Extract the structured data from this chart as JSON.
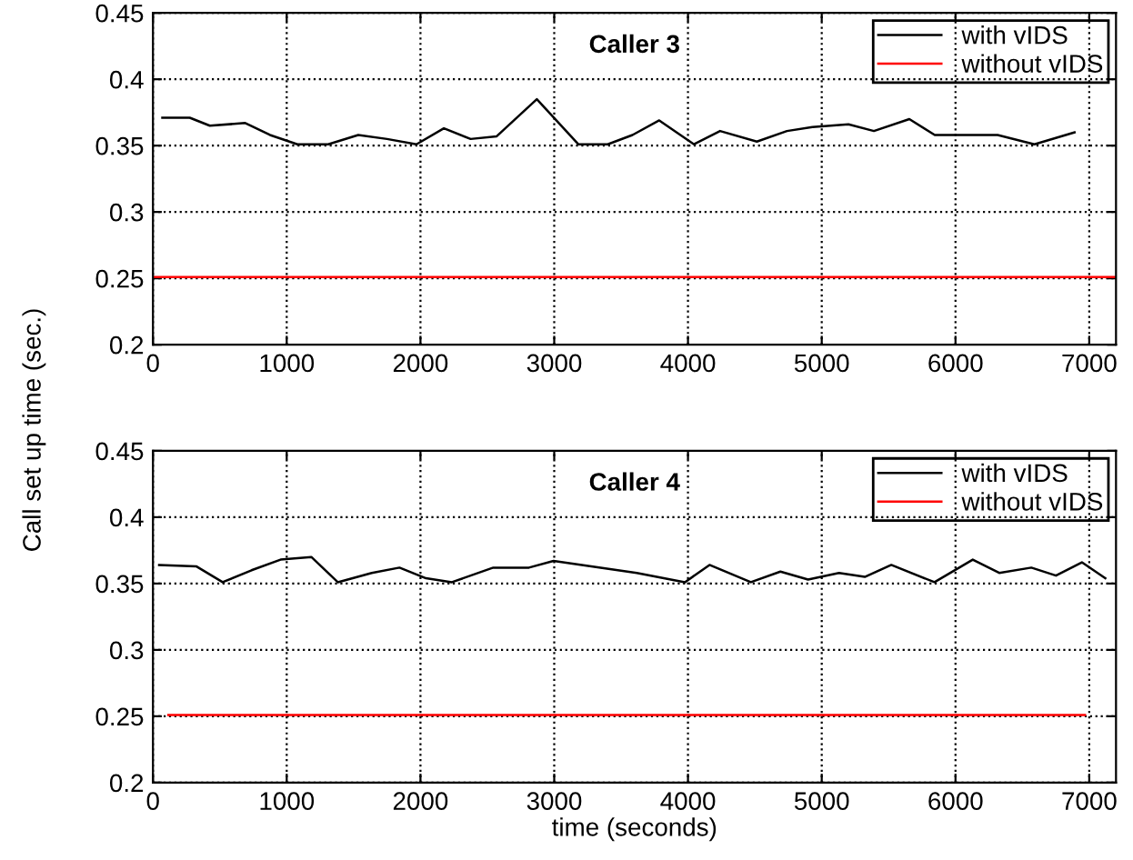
{
  "chart_data": [
    {
      "type": "line",
      "title": "Caller 3",
      "ylabel": "Call set up time (sec.)",
      "xlim": [
        0,
        7200
      ],
      "ylim": [
        0.2,
        0.45
      ],
      "xticks": [
        0,
        1000,
        2000,
        3000,
        4000,
        5000,
        6000,
        7000
      ],
      "yticks": [
        0.2,
        0.25,
        0.3,
        0.35,
        0.4,
        0.45
      ],
      "grid": true,
      "legend": "top right",
      "series": [
        {
          "name": "with vIDS",
          "color": "#000000",
          "x": [
            70,
            275,
            425,
            690,
            875,
            1080,
            1310,
            1535,
            1750,
            1970,
            2175,
            2375,
            2570,
            2870,
            3180,
            3400,
            3585,
            3785,
            4045,
            4240,
            4515,
            4740,
            4930,
            5200,
            5390,
            5655,
            5845,
            6315,
            6590,
            6890
          ],
          "values": [
            0.371,
            0.371,
            0.365,
            0.367,
            0.358,
            0.351,
            0.351,
            0.358,
            0.355,
            0.351,
            0.363,
            0.355,
            0.357,
            0.385,
            0.351,
            0.351,
            0.358,
            0.369,
            0.351,
            0.361,
            0.353,
            0.361,
            0.364,
            0.366,
            0.361,
            0.37,
            0.358,
            0.358,
            0.351,
            0.36
          ]
        },
        {
          "name": "without vIDS",
          "color": "#ff0000",
          "x": [
            0,
            7200
          ],
          "values": [
            0.251,
            0.251
          ]
        }
      ]
    },
    {
      "type": "line",
      "title": "Caller 4",
      "xlabel": "time (seconds)",
      "xlim": [
        0,
        7200
      ],
      "ylim": [
        0.2,
        0.45
      ],
      "xticks": [
        0,
        1000,
        2000,
        3000,
        4000,
        5000,
        6000,
        7000
      ],
      "yticks": [
        0.2,
        0.25,
        0.3,
        0.35,
        0.4,
        0.45
      ],
      "grid": true,
      "legend": "top right",
      "series": [
        {
          "name": "with vIDS",
          "color": "#000000",
          "x": [
            46,
            323,
            521,
            737,
            954,
            1184,
            1382,
            1636,
            1843,
            2041,
            2235,
            2544,
            2811,
            2995,
            3617,
            3977,
            4161,
            4470,
            4691,
            4898,
            5129,
            5322,
            5520,
            5843,
            6129,
            6327,
            6567,
            6751,
            6945,
            7120
          ],
          "values": [
            0.364,
            0.363,
            0.351,
            0.36,
            0.368,
            0.37,
            0.351,
            0.358,
            0.362,
            0.354,
            0.351,
            0.362,
            0.362,
            0.367,
            0.358,
            0.351,
            0.364,
            0.351,
            0.359,
            0.353,
            0.358,
            0.355,
            0.364,
            0.351,
            0.368,
            0.358,
            0.362,
            0.356,
            0.366,
            0.354
          ]
        },
        {
          "name": "without vIDS",
          "color": "#ff0000",
          "x": [
            115,
            6968
          ],
          "values": [
            0.251,
            0.251
          ]
        }
      ]
    }
  ]
}
